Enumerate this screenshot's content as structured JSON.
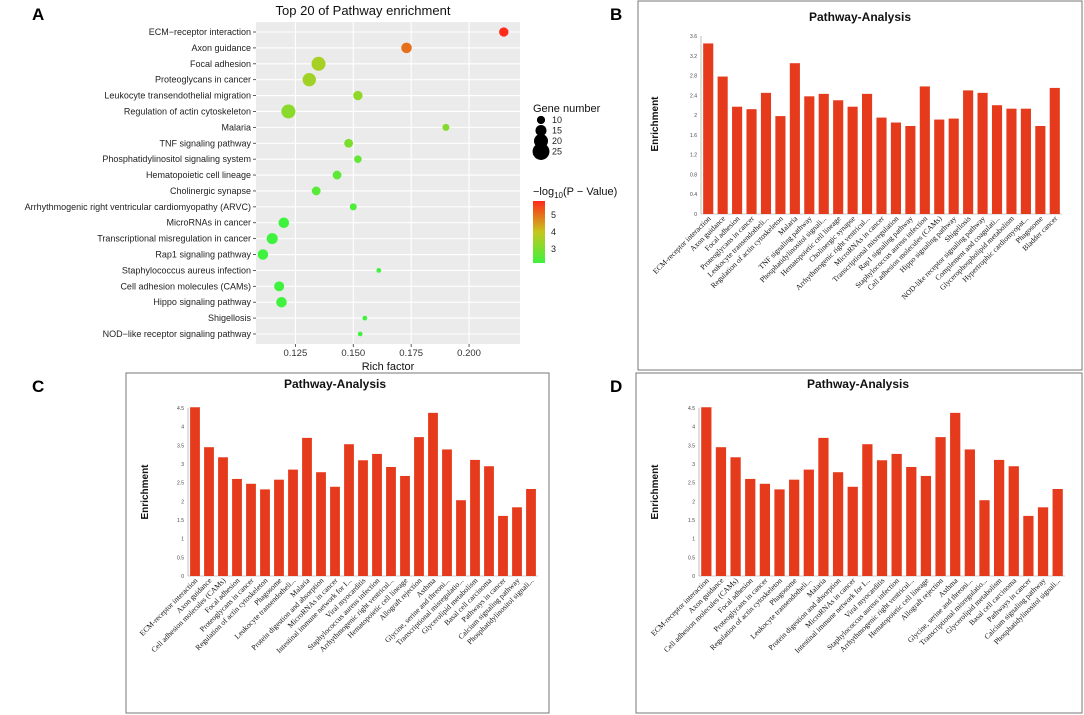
{
  "panels": {
    "a": {
      "label": "A",
      "chart_data": {
        "type": "scatter",
        "title": "Top 20 of Pathway enrichment",
        "xlabel": "Rich factor",
        "ylabel": "",
        "xlim": [
          0.108,
          0.222
        ],
        "xticks": [
          0.125,
          0.15,
          0.175,
          0.2
        ],
        "xtick_labels": [
          "0.125",
          "0.150",
          "0.175",
          "0.200"
        ],
        "categories": [
          "ECM−receptor interaction",
          "Axon guidance",
          "Focal adhesion",
          "Proteoglycans in cancer",
          "Leukocyte transendothelial migration",
          "Regulation of actin cytoskeleton",
          "Malaria",
          "TNF signaling pathway",
          "Phosphatidylinositol signaling system",
          "Hematopoietic cell lineage",
          "Cholinergic synapse",
          "Arrhythmogenic right ventricular cardiomyopathy (ARVC)",
          "MicroRNAs in cancer",
          "Transcriptional misregulation in cancer",
          "Rap1 signaling pathway",
          "Staphylococcus aureus infection",
          "Cell adhesion molecules (CAMs)",
          "Hippo signaling pathway",
          "Shigellosis",
          "NOD−like receptor signaling pathway"
        ],
        "x": [
          0.215,
          0.173,
          0.135,
          0.131,
          0.152,
          0.122,
          0.19,
          0.148,
          0.152,
          0.143,
          0.134,
          0.15,
          0.12,
          0.115,
          0.111,
          0.161,
          0.118,
          0.119,
          0.155,
          0.153
        ],
        "gene_number": [
          12,
          14,
          20,
          19,
          12,
          20,
          8,
          11,
          9,
          11,
          11,
          8,
          14,
          15,
          14,
          4,
          13,
          14,
          4,
          4
        ],
        "neg_log10_p": [
          5.8,
          5.0,
          3.6,
          3.5,
          3.3,
          3.2,
          3.1,
          3.0,
          2.7,
          2.6,
          2.5,
          2.4,
          2.2,
          2.1,
          2.1,
          2.0,
          2.0,
          2.0,
          1.9,
          1.9
        ],
        "size_legend": {
          "title": "Gene number",
          "values": [
            10,
            15,
            20,
            25
          ],
          "labels": [
            "10",
            "15",
            "20",
            "25"
          ]
        },
        "color_legend": {
          "title_prefix": "−log",
          "title_sub": "10",
          "title_suffix": "(P − Value)",
          "ticks": [
            5,
            4,
            3
          ],
          "tick_labels": [
            "5",
            "4",
            "3"
          ],
          "range": [
            2.2,
            5.8
          ],
          "colors": [
            "#3ef23e",
            "#c6c61c",
            "#ff2a1a"
          ]
        },
        "grid": true
      }
    },
    "b": {
      "label": "B",
      "chart_data": {
        "type": "bar",
        "title": "Pathway-Analysis",
        "ylabel": "Enrichment",
        "xlabel": "",
        "ylim": [
          0,
          3.6
        ],
        "yticks": [
          0,
          0.4,
          0.8,
          1.2,
          1.6,
          2,
          2.4,
          2.8,
          3.2,
          3.6
        ],
        "ytick_labels": [
          "0",
          "0.4",
          "0.8",
          "1.2",
          "1.6",
          "2",
          "2.4",
          "2.8",
          "3.2",
          "3.6"
        ],
        "bar_color": "#e53a1c",
        "categories": [
          "ECM-receptor interaction",
          "Axon guidance",
          "Focal adhesion",
          "Proteoglycans in cancer",
          "Leukocyte transendotheli...",
          "Regulation of actin cytoskeleton",
          "Malaria",
          "TNF signaling pathway",
          "Phosphatidylinositol signali...",
          "Hematopoietic cell lineage",
          "Cholinergic synapse",
          "Arrhythmogenic right ventricul...",
          "MicroRNAs in cancer",
          "Transcriptional misregulation",
          "Rap1 signaling pathway",
          "Staphylococcus aureus infection",
          "Cell adhesion molecules (CAMs)",
          "Hippo signaling pathway",
          "Shigellosis",
          "NOD-like receptor signaling pathway",
          "Complement and coagulati...",
          "Glycerophospholipid metabolism",
          "Hypertrophic cardiomyopat...",
          "Phagosome",
          "Bladder cancer"
        ],
        "values": [
          3.45,
          2.78,
          2.17,
          2.12,
          2.45,
          1.98,
          3.05,
          2.38,
          2.43,
          2.3,
          2.17,
          2.43,
          1.95,
          1.85,
          1.78,
          2.58,
          1.91,
          1.93,
          2.5,
          2.45,
          2.2,
          2.13,
          2.13,
          1.78,
          2.55
        ]
      }
    },
    "c": {
      "label": "C",
      "chart_data": {
        "type": "bar",
        "title": "Pathway-Analysis",
        "ylabel": "Enrichment",
        "xlabel": "",
        "ylim": [
          0,
          4.5
        ],
        "yticks": [
          0,
          0.5,
          1,
          1.5,
          2,
          2.5,
          3,
          3.5,
          4,
          4.5
        ],
        "ytick_labels": [
          "0",
          "0.5",
          "1",
          "1.5",
          "2",
          "2.5",
          "3",
          "3.5",
          "4",
          "4.5"
        ],
        "bar_color": "#e53a1c",
        "categories": [
          "ECM-receptor interaction",
          "Axon guidance",
          "Cell adhesion molecules (CAMs)",
          "Focal adhesion",
          "Proteoglycans in cancer",
          "Regulation of actin cytoskeleton",
          "Phagosome",
          "Leukocyte transendotheli...",
          "Malaria",
          "Protein digestion and absorption",
          "MicroRNAs in cancer",
          "Intestinal immune network for I...",
          "Viral myocarditis",
          "Staphylococcus aureus infection",
          "Arrhythmogenic right ventricul...",
          "Hematopoietic cell lineage",
          "Allograft rejection",
          "Asthma",
          "Glycine, serine and threoni...",
          "Transcriptional misregulatio...",
          "Glycerolipid metabolism",
          "Basal cell carcinoma",
          "Pathways in cancer",
          "Calcium signaling pathway",
          "Phosphatidylinositol signali..."
        ],
        "values": [
          4.52,
          3.45,
          3.18,
          2.6,
          2.47,
          2.32,
          2.58,
          2.85,
          3.7,
          2.78,
          2.39,
          3.53,
          3.1,
          3.27,
          2.92,
          2.68,
          3.72,
          4.37,
          3.39,
          2.03,
          3.11,
          2.94,
          1.61,
          1.84,
          2.33
        ]
      }
    },
    "d": {
      "label": "D",
      "chart_data": {
        "type": "bar",
        "title": "Pathway-Analysis",
        "ylabel": "Enrichment",
        "xlabel": "",
        "ylim": [
          0,
          4.5
        ],
        "yticks": [
          0,
          0.5,
          1,
          1.5,
          2,
          2.5,
          3,
          3.5,
          4,
          4.5
        ],
        "ytick_labels": [
          "0",
          "0.5",
          "1",
          "1.5",
          "2",
          "2.5",
          "3",
          "3.5",
          "4",
          "4.5"
        ],
        "bar_color": "#e53a1c",
        "categories": [
          "ECM-receptor interaction",
          "Axon guidance",
          "Cell adhesion molecules (CAMs)",
          "Focal adhesion",
          "Proteoglycans in cancer",
          "Regulation of actin cytoskeleton",
          "Phagosome",
          "Leukocyte transendotheli...",
          "Malaria",
          "Protein digestion and absorption",
          "MicroRNAs in cancer",
          "Intestinal immune network for I...",
          "Viral myocarditis",
          "Staphylococcus aureus infection",
          "Arrhythmogenic right ventricul...",
          "Hematopoietic cell lineage",
          "Allograft rejection",
          "Asthma",
          "Glycine, serine and threoni...",
          "Transcriptional misregulatio...",
          "Glycerolipid metabolism",
          "Basal cell carcinoma",
          "Pathways in cancer",
          "Calcium signaling pathway",
          "Phosphatidylinositol signali..."
        ],
        "values": [
          4.52,
          3.45,
          3.18,
          2.6,
          2.47,
          2.32,
          2.58,
          2.85,
          3.7,
          2.78,
          2.39,
          3.53,
          3.1,
          3.27,
          2.92,
          2.68,
          3.72,
          4.37,
          3.39,
          2.03,
          3.11,
          2.94,
          1.61,
          1.84,
          2.33
        ]
      }
    }
  }
}
